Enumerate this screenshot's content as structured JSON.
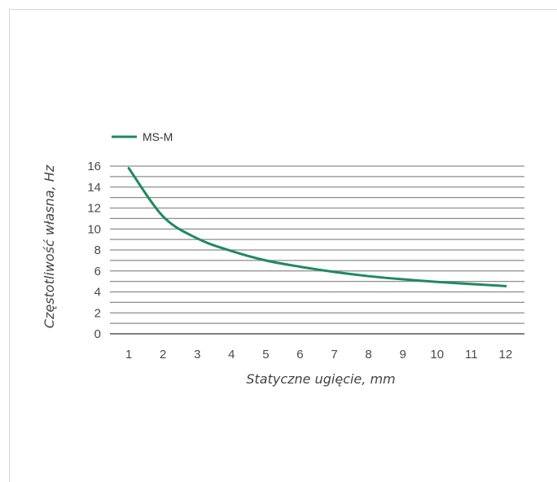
{
  "chart_data": {
    "type": "line",
    "title": "",
    "xlabel": "Statyczne ugięcie, mm",
    "ylabel": "Częstotliwość własna, Hz",
    "x": [
      1,
      2,
      3,
      4,
      5,
      6,
      7,
      8,
      9,
      10,
      11,
      12
    ],
    "x_tick_labels": [
      "1",
      "2",
      "3",
      "4",
      "5",
      "6",
      "7",
      "8",
      "9",
      "10",
      "11",
      "12"
    ],
    "y_tick_labels": [
      "16",
      "14",
      "12",
      "10",
      "8",
      "6",
      "4",
      "2",
      "0"
    ],
    "xlim": [
      0.45,
      12.55
    ],
    "ylim": [
      0,
      16
    ],
    "grid": true,
    "legend_position": "top-left",
    "series": [
      {
        "name": "MS-M",
        "color": "#1e8a62",
        "values": [
          15.8,
          11.2,
          9.1,
          7.9,
          7.0,
          6.4,
          5.9,
          5.5,
          5.2,
          4.95,
          4.75,
          4.55
        ]
      }
    ]
  }
}
